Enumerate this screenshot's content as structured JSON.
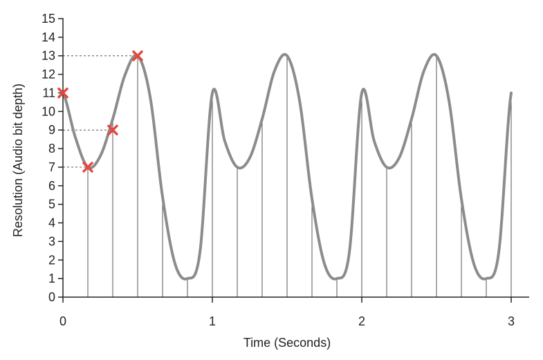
{
  "chart_data": {
    "type": "line",
    "title": "",
    "xlabel": "Time (Seconds)",
    "ylabel": "Resolution (Audio bit depth)",
    "xlim": [
      0,
      3
    ],
    "ylim": [
      0,
      15
    ],
    "x_ticks": [
      0,
      1,
      2,
      3
    ],
    "x_tick_labels": [
      "0",
      "1",
      "2",
      "3"
    ],
    "y_ticks": [
      0,
      1,
      2,
      3,
      4,
      5,
      6,
      7,
      8,
      9,
      10,
      11,
      12,
      13,
      14,
      15
    ],
    "y_tick_labels": [
      "0",
      "1",
      "2",
      "3",
      "4",
      "5",
      "6",
      "7",
      "8",
      "9",
      "10",
      "11",
      "12",
      "13",
      "14",
      "15"
    ],
    "grid": false,
    "series": [
      {
        "color": "#8c8c8c",
        "x": [
          0,
          0.0833,
          0.1667,
          0.25,
          0.3333,
          0.4167,
          0.5,
          0.5833,
          0.6667,
          0.75,
          0.8333,
          0.9167,
          1.0,
          1.0833,
          1.1667,
          1.25,
          1.3333,
          1.4167,
          1.5,
          1.5833,
          1.6667,
          1.75,
          1.8333,
          1.9167,
          2.0,
          2.0833,
          2.1667,
          2.25,
          2.3333,
          2.4167,
          2.5,
          2.5833,
          2.6667,
          2.75,
          2.8333,
          2.9167,
          3.0
        ],
        "y": [
          11,
          8.6,
          7,
          7.6,
          9.6,
          12.0,
          13,
          10.8,
          5.4,
          1.8,
          1,
          2.4,
          11,
          8.4,
          7,
          7.5,
          9.6,
          12.2,
          13,
          10.6,
          5.3,
          1.8,
          1,
          2.4,
          11,
          8.4,
          7,
          7.5,
          9.6,
          12.2,
          13,
          10.6,
          5.3,
          1.8,
          1,
          2.4,
          11
        ]
      }
    ],
    "sample_times": [
      0,
      0.1667,
      0.3333,
      0.5,
      0.6667,
      0.8333,
      1.0,
      1.1667,
      1.3333,
      1.5,
      1.6667,
      1.8333,
      2.0,
      2.1667,
      2.3333,
      2.5,
      2.6667,
      2.8333,
      3.0
    ],
    "marked_samples": [
      {
        "x": 0,
        "y": 11
      },
      {
        "x": 0.1667,
        "y": 7
      },
      {
        "x": 0.3333,
        "y": 9
      },
      {
        "x": 0.5,
        "y": 13
      }
    ],
    "marker_color": "#e8453c",
    "reference_levels": [
      7,
      9,
      13
    ]
  }
}
